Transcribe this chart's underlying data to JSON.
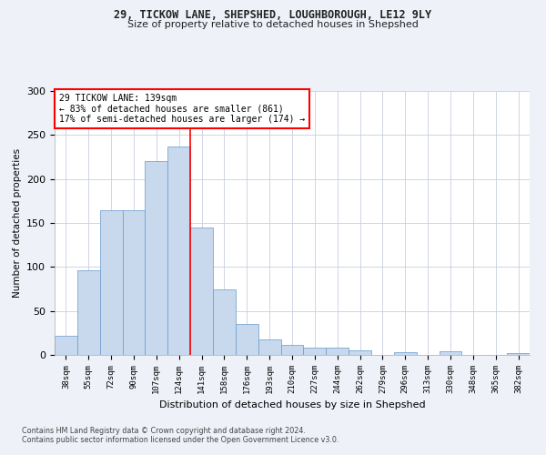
{
  "title1": "29, TICKOW LANE, SHEPSHED, LOUGHBOROUGH, LE12 9LY",
  "title2": "Size of property relative to detached houses in Shepshed",
  "xlabel": "Distribution of detached houses by size in Shepshed",
  "ylabel": "Number of detached properties",
  "categories": [
    "38sqm",
    "55sqm",
    "72sqm",
    "90sqm",
    "107sqm",
    "124sqm",
    "141sqm",
    "158sqm",
    "176sqm",
    "193sqm",
    "210sqm",
    "227sqm",
    "244sqm",
    "262sqm",
    "279sqm",
    "296sqm",
    "313sqm",
    "330sqm",
    "348sqm",
    "365sqm",
    "382sqm"
  ],
  "values": [
    22,
    96,
    165,
    165,
    220,
    237,
    145,
    75,
    35,
    18,
    11,
    8,
    8,
    5,
    0,
    3,
    0,
    4,
    0,
    0,
    2
  ],
  "bar_color": "#c8d9ee",
  "bar_edge_color": "#6699cc",
  "annotation_text_line1": "29 TICKOW LANE: 139sqm",
  "annotation_text_line2": "← 83% of detached houses are smaller (861)",
  "annotation_text_line3": "17% of semi-detached houses are larger (174) →",
  "annotation_box_color": "white",
  "annotation_box_edge_color": "red",
  "vline_color": "red",
  "ylim": [
    0,
    300
  ],
  "yticks": [
    0,
    50,
    100,
    150,
    200,
    250,
    300
  ],
  "footnote1": "Contains HM Land Registry data © Crown copyright and database right 2024.",
  "footnote2": "Contains public sector information licensed under the Open Government Licence v3.0.",
  "bg_color": "#eef2f8",
  "plot_bg_color": "#ffffff",
  "grid_color": "#c8cfe0"
}
